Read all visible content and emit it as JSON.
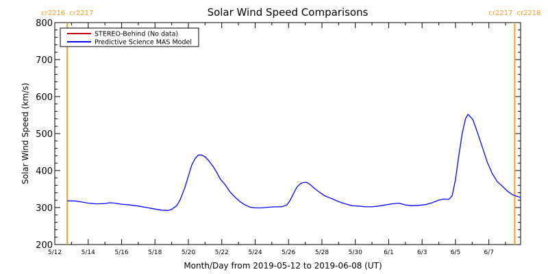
{
  "chart_data": {
    "type": "line",
    "title": "Solar Wind Speed Comparisons",
    "xlabel": "Month/Day from 2019-05-12 to 2019-06-08 (UT)",
    "ylabel": "Solar Wind Speed (km/s)",
    "x_unit": "days from 2019-05-12",
    "xlim": [
      0,
      27.9
    ],
    "ylim": [
      200,
      800
    ],
    "yticks": [
      200,
      300,
      400,
      500,
      600,
      700,
      800
    ],
    "xticks": [
      {
        "x": 0,
        "label": "5/12"
      },
      {
        "x": 2,
        "label": "5/14"
      },
      {
        "x": 4,
        "label": "5/16"
      },
      {
        "x": 6,
        "label": "5/18"
      },
      {
        "x": 8,
        "label": "5/20"
      },
      {
        "x": 10,
        "label": "5/22"
      },
      {
        "x": 12,
        "label": "5/24"
      },
      {
        "x": 14,
        "label": "5/26"
      },
      {
        "x": 16,
        "label": "5/28"
      },
      {
        "x": 18,
        "label": "5/30"
      },
      {
        "x": 20,
        "label": "6/1"
      },
      {
        "x": 22,
        "label": "6/3"
      },
      {
        "x": 24,
        "label": "6/5"
      },
      {
        "x": 26,
        "label": "6/7"
      }
    ],
    "carrington_markers": [
      {
        "x": 0.75,
        "left_label": "cr2216",
        "right_label": "cr2217"
      },
      {
        "x": 27.55,
        "left_label": "cr2217",
        "right_label": "cr2218"
      }
    ],
    "marker_color": "#f0a020",
    "legend": {
      "placement": "top-left",
      "entries": [
        {
          "label": "STEREO-Behind (No data)",
          "color": "#c00000"
        },
        {
          "label": "Predictive Science MAS Model",
          "color": "#0000ff"
        }
      ]
    },
    "series": [
      {
        "name": "Predictive Science MAS Model",
        "color": "#0000ff",
        "points": [
          [
            0.75,
            318
          ],
          [
            1.2,
            318
          ],
          [
            1.5,
            316
          ],
          [
            2.0,
            312
          ],
          [
            2.5,
            310
          ],
          [
            3.0,
            311
          ],
          [
            3.3,
            313
          ],
          [
            3.6,
            312
          ],
          [
            4.0,
            309
          ],
          [
            4.5,
            307
          ],
          [
            5.0,
            304
          ],
          [
            5.5,
            300
          ],
          [
            6.0,
            296
          ],
          [
            6.4,
            293
          ],
          [
            6.8,
            292
          ],
          [
            7.0,
            295
          ],
          [
            7.3,
            305
          ],
          [
            7.5,
            320
          ],
          [
            7.8,
            355
          ],
          [
            8.0,
            385
          ],
          [
            8.2,
            415
          ],
          [
            8.4,
            432
          ],
          [
            8.6,
            442
          ],
          [
            8.8,
            442
          ],
          [
            9.0,
            437
          ],
          [
            9.2,
            428
          ],
          [
            9.5,
            410
          ],
          [
            9.7,
            395
          ],
          [
            9.9,
            378
          ],
          [
            10.2,
            362
          ],
          [
            10.5,
            342
          ],
          [
            10.8,
            328
          ],
          [
            11.1,
            316
          ],
          [
            11.4,
            307
          ],
          [
            11.7,
            301
          ],
          [
            12.0,
            299
          ],
          [
            12.4,
            299
          ],
          [
            12.8,
            301
          ],
          [
            13.2,
            302
          ],
          [
            13.6,
            302
          ],
          [
            13.9,
            307
          ],
          [
            14.1,
            320
          ],
          [
            14.3,
            338
          ],
          [
            14.5,
            355
          ],
          [
            14.7,
            364
          ],
          [
            14.9,
            368
          ],
          [
            15.1,
            368
          ],
          [
            15.3,
            362
          ],
          [
            15.6,
            350
          ],
          [
            15.9,
            340
          ],
          [
            16.2,
            331
          ],
          [
            16.6,
            324
          ],
          [
            17.0,
            316
          ],
          [
            17.4,
            310
          ],
          [
            17.8,
            305
          ],
          [
            18.2,
            304
          ],
          [
            18.6,
            302
          ],
          [
            19.0,
            302
          ],
          [
            19.4,
            304
          ],
          [
            19.8,
            307
          ],
          [
            20.2,
            310
          ],
          [
            20.6,
            312
          ],
          [
            21.0,
            307
          ],
          [
            21.4,
            305
          ],
          [
            21.8,
            306
          ],
          [
            22.2,
            308
          ],
          [
            22.6,
            313
          ],
          [
            23.0,
            320
          ],
          [
            23.3,
            323
          ],
          [
            23.6,
            322
          ],
          [
            23.8,
            332
          ],
          [
            24.0,
            375
          ],
          [
            24.2,
            440
          ],
          [
            24.4,
            500
          ],
          [
            24.6,
            540
          ],
          [
            24.75,
            552
          ],
          [
            24.9,
            545
          ],
          [
            25.05,
            537
          ],
          [
            25.3,
            505
          ],
          [
            25.6,
            465
          ],
          [
            25.9,
            423
          ],
          [
            26.2,
            392
          ],
          [
            26.5,
            370
          ],
          [
            26.8,
            358
          ],
          [
            27.1,
            345
          ],
          [
            27.4,
            335
          ],
          [
            27.7,
            330
          ],
          [
            27.9,
            327
          ]
        ]
      }
    ]
  }
}
